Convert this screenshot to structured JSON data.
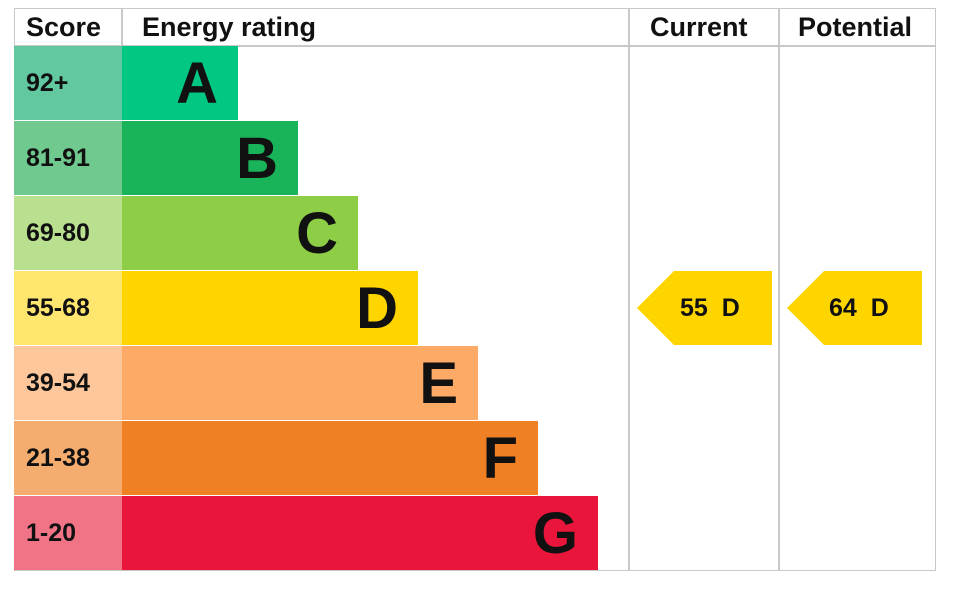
{
  "chart_data": {
    "type": "bar",
    "headers": {
      "score": "Score",
      "rating": "Energy rating",
      "current": "Current",
      "potential": "Potential"
    },
    "bands": [
      {
        "letter": "A",
        "range": "92+",
        "color": "#00c781",
        "score_color": "#61c8a0"
      },
      {
        "letter": "B",
        "range": "81-91",
        "color": "#19b459",
        "score_color": "#70c98e"
      },
      {
        "letter": "C",
        "range": "69-80",
        "color": "#8dce46",
        "score_color": "#b9e08f"
      },
      {
        "letter": "D",
        "range": "55-68",
        "color": "#ffd500",
        "score_color": "#ffe66e"
      },
      {
        "letter": "E",
        "range": "39-54",
        "color": "#fcaa65",
        "score_color": "#fdc79b"
      },
      {
        "letter": "F",
        "range": "21-38",
        "color": "#ef8023",
        "score_color": "#f4ac6f"
      },
      {
        "letter": "G",
        "range": "1-20",
        "color": "#e9153b",
        "score_color": "#f07386"
      }
    ],
    "current": {
      "value": 55,
      "band": "D",
      "label": "55  D",
      "color": "#ffd500"
    },
    "potential": {
      "value": 64,
      "band": "D",
      "label": "64  D",
      "color": "#ffd500"
    }
  }
}
